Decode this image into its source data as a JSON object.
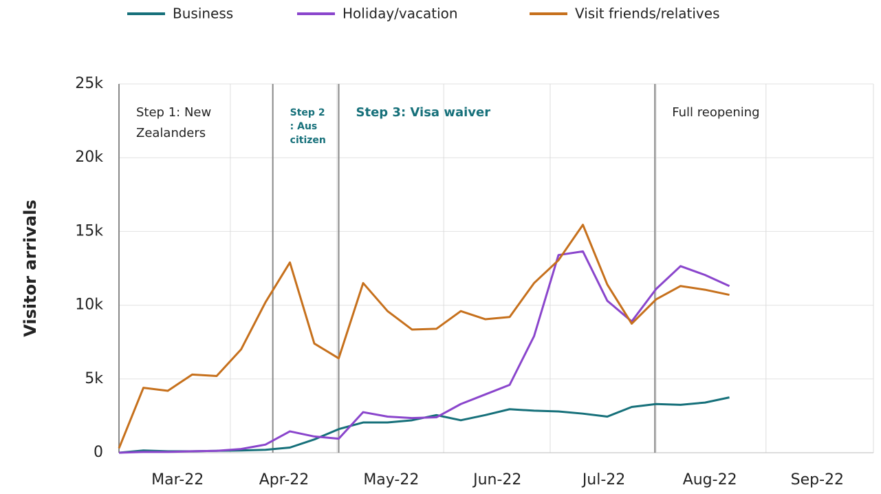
{
  "chart_data": {
    "type": "line",
    "y_label": "Visitor arrivals",
    "categories": [
      null,
      null,
      null,
      null,
      null,
      null,
      null,
      null,
      null,
      null,
      null,
      null,
      null,
      null,
      null,
      null,
      null,
      null,
      null,
      null,
      null,
      null,
      null,
      null,
      null,
      null
    ],
    "series": [
      {
        "name": "Business",
        "color": "#16707a",
        "values": [
          0,
          150,
          100,
          100,
          130,
          150,
          200,
          350,
          900,
          1600,
          2050,
          2050,
          2200,
          2550,
          2200,
          2550,
          2950,
          2850,
          2800,
          2650,
          2450,
          3100,
          3300,
          3250,
          3400,
          3750
        ]
      },
      {
        "name": "Holiday/vacation",
        "color": "#8a45cc",
        "values": [
          0,
          50,
          50,
          100,
          130,
          250,
          550,
          1450,
          1100,
          950,
          2750,
          2450,
          2350,
          2400,
          3300,
          3950,
          4600,
          7900,
          13400,
          13650,
          10300,
          8900,
          11100,
          12650,
          12050,
          11300
        ]
      },
      {
        "name": "Visit friends/relatives",
        "color": "#c6701c",
        "values": [
          300,
          4400,
          4200,
          5300,
          5200,
          7000,
          10200,
          12900,
          7400,
          6400,
          11500,
          9600,
          8350,
          8400,
          9600,
          9050,
          9200,
          11500,
          13050,
          15450,
          11400,
          8750,
          10400,
          11300,
          11050,
          10700
        ]
      }
    ],
    "xlim": [
      0,
      30.9
    ],
    "xticks": [
      {
        "value": 2.4,
        "label": "Mar-22"
      },
      {
        "value": 6.76,
        "label": "Apr-22"
      },
      {
        "value": 11.15,
        "label": "May-22"
      },
      {
        "value": 15.5,
        "label": "Jun-22"
      },
      {
        "value": 19.86,
        "label": "Jul-22"
      },
      {
        "value": 24.2,
        "label": "Aug-22"
      },
      {
        "value": 28.6,
        "label": "Sep-22"
      }
    ],
    "xgrid": [
      4.56,
      8.93,
      13.3,
      17.66,
      22.0,
      26.5,
      30.9
    ],
    "ylim": [
      0,
      25000
    ],
    "yticks": [
      0,
      {
        "value": 5000,
        "label": "5k"
      },
      {
        "value": 10000,
        "label": "10k"
      },
      {
        "value": 15000,
        "label": "15k"
      },
      {
        "value": 20000,
        "label": "20k"
      },
      {
        "value": 25000,
        "label": "25k"
      }
    ],
    "grid": true,
    "annotations": [
      {
        "x": 0,
        "lines": [
          "Step 1: New",
          "Zealanders"
        ],
        "style": "normal"
      },
      {
        "x": 6.3,
        "lines": [
          "Step 2",
          ": Aus",
          "citizen"
        ],
        "style": "small"
      },
      {
        "x": 9.0,
        "lines": [
          "Step 3: Visa waiver"
        ],
        "style": "bold"
      },
      {
        "x": 21.95,
        "lines": [
          "Full reopening"
        ],
        "style": "normal"
      }
    ]
  }
}
